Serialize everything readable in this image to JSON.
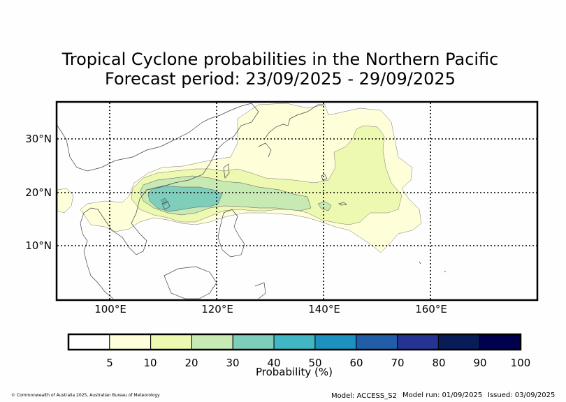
{
  "title": {
    "line1": "Tropical Cyclone probabilities in the Northern Pacific",
    "line2": "Forecast period: 23/09/2025 - 29/09/2025"
  },
  "map": {
    "lat_labels": [
      "30°N",
      "20°N",
      "10°N"
    ],
    "lon_labels": [
      "100°E",
      "120°E",
      "140°E",
      "160°E"
    ]
  },
  "colorbar": {
    "label": "Probability (%)",
    "levels": [
      "5",
      "10",
      "20",
      "30",
      "40",
      "50",
      "60",
      "70",
      "80",
      "90",
      "100"
    ],
    "colors": [
      "#ffffff",
      "#fefed9",
      "#edf8b1",
      "#c7e9b4",
      "#7fcdbb",
      "#41b6c4",
      "#1d91c0",
      "#225ea8",
      "#253494",
      "#081d58",
      "#00004c"
    ]
  },
  "footer": {
    "copyright": "© Commonwealth of Australia 2025, Australian Bureau of Meteorology",
    "model": "Model: ACCESS_S2",
    "model_run": "Model run: 01/09/2025",
    "issued": "Issued: 03/09/2025"
  }
}
